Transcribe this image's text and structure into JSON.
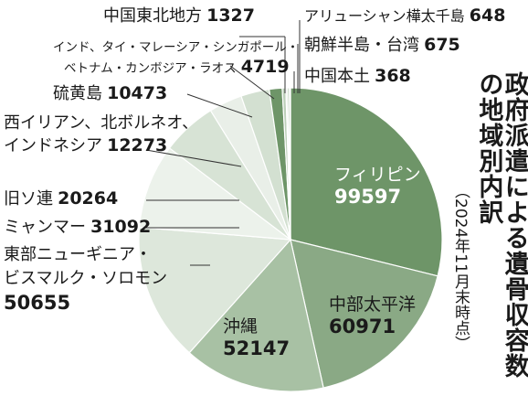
{
  "chart_data": {
    "type": "pie",
    "title": "政府派遣による遺骨収容数の地域別内訳",
    "subtitle": "（2024年11月末時点）",
    "slices": [
      {
        "name": "フィリピン",
        "value": 99597,
        "color": "#6e9568"
      },
      {
        "name": "中部太平洋",
        "value": 60971,
        "color": "#8aa985"
      },
      {
        "name": "沖縄",
        "value": 52147,
        "color": "#a8c1a4"
      },
      {
        "name": "東部ニューギニア・ビスマルク・ソロモン",
        "value": 50655,
        "color": "#dde7db"
      },
      {
        "name": "ミャンマー",
        "value": 31092,
        "color": "#ecf2eb"
      },
      {
        "name": "旧ソ連",
        "value": 20264,
        "color": "#d7e3d5"
      },
      {
        "name": "西イリアン、北ボルネオ、インドネシア",
        "value": 12273,
        "color": "#e9efe8"
      },
      {
        "name": "硫黄島",
        "value": 10473,
        "color": "#d3e0d1"
      },
      {
        "name": "インド、タイ・マレーシア・シンガポール・ベトナム・カンボジア・ラオス",
        "value": 4719,
        "color": "#6e9568"
      },
      {
        "name": "中国東北地方",
        "value": 1327,
        "color": "#bccfb9"
      },
      {
        "name": "アリューシャン樺太千島",
        "value": 648,
        "color": "#e4ece2"
      },
      {
        "name": "朝鮮半島・台湾",
        "value": 675,
        "color": "#a8c1a4"
      },
      {
        "name": "中国本土",
        "value": 368,
        "color": "#5c8557"
      }
    ]
  },
  "labels": {
    "philippines": {
      "name": "フィリピン",
      "value": "99597"
    },
    "central_pacific": {
      "name": "中部太平洋",
      "value": "60971"
    },
    "okinawa": {
      "name": "沖縄",
      "value": "52147"
    },
    "new_guinea": {
      "line1": "東部ニューギニア・",
      "line2": "ビスマルク・ソロモン",
      "value": "50655"
    },
    "myanmar": {
      "name": "ミャンマー",
      "value": "31092"
    },
    "ussr": {
      "name": "旧ソ連",
      "value": "20264"
    },
    "west_irian": {
      "line1": "西イリアン、北ボルネオ、",
      "line2": "インドネシア",
      "value": "12273"
    },
    "iwo_jima": {
      "name": "硫黄島",
      "value": "10473"
    },
    "india_sea": {
      "line1": "インド、タイ・マレーシア・シンガポール・",
      "line2": "ベトナム・カンボジア・ラオス",
      "value": "4719"
    },
    "ne_china": {
      "name": "中国東北地方",
      "value": "1327"
    },
    "aleutian": {
      "name": "アリューシャン樺太千島",
      "value": "648"
    },
    "korea_taiwan": {
      "name": "朝鮮半島・台湾",
      "value": "675"
    },
    "china_mainland": {
      "name": "中国本土",
      "value": "368"
    }
  }
}
